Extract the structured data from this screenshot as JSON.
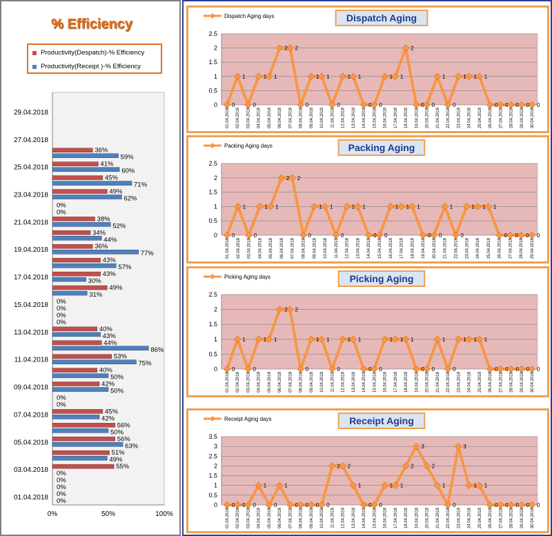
{
  "efficiency": {
    "title": "% Efficiency",
    "legend": [
      {
        "label": "Productivity(Despatch)-% Efficiency",
        "color": "#c0504d"
      },
      {
        "label": "Productivity(Receipt )-% Efficiency",
        "color": "#4f81bd"
      }
    ],
    "chart_data": {
      "type": "bar",
      "orientation": "horizontal",
      "categories": [
        "01.04.2018",
        "02.04.2018",
        "03.04.2018",
        "04.04.2018",
        "05.04.2018",
        "06.04.2018",
        "07.04.2018",
        "08.04.2018",
        "09.04.2018",
        "10.04.2018",
        "11.04.2018",
        "12.04.2018",
        "13.04.2018",
        "14.04.2018",
        "15.04.2018",
        "16.04.2018",
        "17.04.2018",
        "18.04.2018",
        "19.04.2018",
        "20.04.2018",
        "21.04.2018",
        "22.04.2018",
        "23.04.2018",
        "24.04.2018",
        "25.04.2018",
        "26.04.2018"
      ],
      "category_tick_labels": [
        "01.04.2018",
        "03.04.2018",
        "05.04.2018",
        "07.04.2018",
        "09.04.2018",
        "11.04.2018",
        "13.04.2018",
        "15.04.2018",
        "17.04.2018",
        "19.04.2018",
        "21.04.2018",
        "23.04.2018",
        "25.04.2018",
        "27.04.2018",
        "29.04.2018"
      ],
      "series": [
        {
          "name": "Productivity(Despatch)-% Efficiency",
          "values": [
            0,
            0,
            55,
            51,
            56,
            56,
            45,
            0,
            42,
            40,
            53,
            44,
            40,
            0,
            0,
            49,
            43,
            43,
            36,
            34,
            38,
            0,
            49,
            45,
            41,
            36
          ]
        },
        {
          "name": "Productivity(Receipt )-% Efficiency",
          "values": [
            0,
            0,
            0,
            49,
            63,
            50,
            42,
            0,
            50,
            50,
            75,
            86,
            43,
            0,
            0,
            31,
            30,
            57,
            77,
            44,
            52,
            0,
            62,
            71,
            60,
            59
          ]
        }
      ],
      "data_labels": {
        "despatch": [
          "0%",
          "0%",
          "55%",
          "51%",
          "56%",
          "56%",
          "45%",
          "0%",
          "42%",
          "40%",
          "53%",
          "44%",
          "40%",
          "0%",
          "0%",
          "49%",
          "43%",
          "43%",
          "36%",
          "34%",
          "38%",
          "0%",
          "49%",
          "45%",
          "41%",
          "36%"
        ],
        "receipt": [
          "0%",
          "0%",
          "0%",
          "49%",
          "63%",
          "50%",
          "42%",
          "0%",
          "50%",
          "50%",
          "75%",
          "86%",
          "43%",
          "0%",
          "0%",
          "31%",
          "30%",
          "57%",
          "77%",
          "44%",
          "52%",
          "0%",
          "62%",
          "71%",
          "60%",
          "59%"
        ]
      },
      "x_ticks": [
        "0%",
        "50%",
        "100%"
      ],
      "xlim": [
        0,
        100
      ],
      "grid": false
    }
  },
  "aging_charts": [
    {
      "key": "dispatch",
      "title": "Dispatch Aging",
      "legend": "Dispatch Aging days",
      "chart_data": {
        "type": "line",
        "x": [
          "01.04.2018",
          "02.04.2018",
          "03.04.2018",
          "04.04.2018",
          "05.04.2018",
          "06.04.2018",
          "07.04.2018",
          "08.04.2018",
          "09.04.2018",
          "10.04.2018",
          "11.04.2018",
          "12.04.2018",
          "13.04.2018",
          "14.04.2018",
          "15.04.2018",
          "16.04.2018",
          "17.04.2018",
          "18.04.2018",
          "19.04.2018",
          "20.04.2018",
          "21.04.2018",
          "22.04.2018",
          "23.04.2018",
          "24.04.2018",
          "25.04.2018",
          "26.04.2018",
          "27.04.2018",
          "28.04.2018",
          "29.04.2018",
          "30.04.2018"
        ],
        "series": [
          {
            "name": "Dispatch Aging days",
            "values": [
              0,
              1,
              0,
              1,
              1,
              2,
              2,
              0,
              1,
              1,
              0,
              1,
              1,
              0,
              0,
              1,
              1,
              2,
              0,
              0,
              1,
              0,
              1,
              1,
              1,
              0,
              0,
              0,
              0,
              0
            ]
          }
        ],
        "y_ticks": [
          "0",
          "0.5",
          "1",
          "1.5",
          "2",
          "2.5"
        ],
        "ylim": [
          0,
          2.5
        ],
        "grid": true
      }
    },
    {
      "key": "packing",
      "title": "Packing Aging",
      "legend": "Packing Aging days",
      "chart_data": {
        "type": "line",
        "x": [
          "01.04.2018",
          "02.04.2018",
          "03.04.2018",
          "04.04.2018",
          "05.04.2018",
          "06.04.2018",
          "07.04.2018",
          "08.04.2018",
          "09.04.2018",
          "10.04.2018",
          "11.04.2018",
          "12.04.2018",
          "13.04.2018",
          "14.04.2018",
          "15.04.2018",
          "16.04.2018",
          "17.04.2018",
          "18.04.2018",
          "19.04.2018",
          "20.04.2018",
          "21.04.2018",
          "22.04.2018",
          "23.04.2018",
          "24.04.2018",
          "25.04.2018",
          "26.04.2018",
          "27.04.2018",
          "28.04.2018",
          "29.04.2018"
        ],
        "series": [
          {
            "name": "Packing Aging days",
            "values": [
              0,
              1,
              0,
              1,
              1,
              2,
              2,
              0,
              1,
              1,
              0,
              1,
              1,
              0,
              0,
              1,
              1,
              1,
              0,
              0,
              1,
              0,
              1,
              1,
              1,
              0,
              0,
              0,
              0
            ]
          }
        ],
        "y_ticks": [
          "0",
          "0.5",
          "1",
          "1.5",
          "2",
          "2.5"
        ],
        "ylim": [
          0,
          2.5
        ],
        "grid": true
      }
    },
    {
      "key": "picking",
      "title": "Picking Aging",
      "legend": "Picking Aging days",
      "chart_data": {
        "type": "line",
        "x": [
          "01.04.2018",
          "02.04.2018",
          "03.04.2018",
          "04.04.2018",
          "05.04.2018",
          "06.04.2018",
          "07.04.2018",
          "08.04.2018",
          "09.04.2018",
          "10.04.2018",
          "11.04.2018",
          "12.04.2018",
          "13.04.2018",
          "14.04.2018",
          "15.04.2018",
          "16.04.2018",
          "17.04.2018",
          "18.04.2018",
          "19.04.2018",
          "20.04.2018",
          "21.04.2018",
          "22.04.2018",
          "23.04.2018",
          "24.04.2018",
          "25.04.2018",
          "26.04.2018",
          "27.04.2018",
          "28.04.2018",
          "29.04.2018",
          "30.04.2018"
        ],
        "series": [
          {
            "name": "Picking Aging days",
            "values": [
              0,
              1,
              0,
              1,
              1,
              2,
              2,
              0,
              1,
              1,
              0,
              1,
              1,
              0,
              0,
              1,
              1,
              1,
              0,
              0,
              1,
              0,
              1,
              1,
              1,
              0,
              0,
              0,
              0,
              0
            ]
          }
        ],
        "y_ticks": [
          "0",
          "0.5",
          "1",
          "1.5",
          "2",
          "2.5"
        ],
        "ylim": [
          0,
          2.5
        ],
        "grid": true
      }
    },
    {
      "key": "receipt",
      "title": "Receipt Aging",
      "legend": "Receipt Aging days",
      "chart_data": {
        "type": "line",
        "x": [
          "01.04.2018",
          "02.04.2018",
          "03.04.2018",
          "04.04.2018",
          "05.04.2018",
          "06.04.2018",
          "07.04.2018",
          "08.04.2018",
          "09.04.2018",
          "10.04.2018",
          "11.04.2018",
          "12.04.2018",
          "13.04.2018",
          "14.04.2018",
          "15.04.2018",
          "16.04.2018",
          "17.04.2018",
          "18.04.2018",
          "19.04.2018",
          "20.04.2018",
          "21.04.2018",
          "22.04.2018",
          "23.04.2018",
          "24.04.2018",
          "25.04.2018",
          "26.04.2018",
          "27.04.2018",
          "28.04.2018",
          "29.04.2018",
          "30.04.2018"
        ],
        "series": [
          {
            "name": "Receipt Aging days",
            "values": [
              0,
              0,
              0,
              1,
              0,
              1,
              0,
              0,
              0,
              0,
              2,
              2,
              1,
              0,
              0,
              1,
              1,
              2,
              3,
              2,
              1,
              0,
              3,
              1,
              1,
              0,
              0,
              0,
              0,
              0
            ]
          }
        ],
        "y_ticks": [
          "0",
          "0.5",
          "1",
          "1.5",
          "2",
          "2.5",
          "3",
          "3.5"
        ],
        "ylim": [
          0,
          3.5
        ],
        "grid": true
      }
    }
  ],
  "colors": {
    "despatch_bar": "#c0504d",
    "receipt_bar": "#4f81bd",
    "line": "#f79646",
    "plot_area": "#e6b9b8",
    "title_text": "#1f3a8f",
    "border": "#f0a050"
  }
}
